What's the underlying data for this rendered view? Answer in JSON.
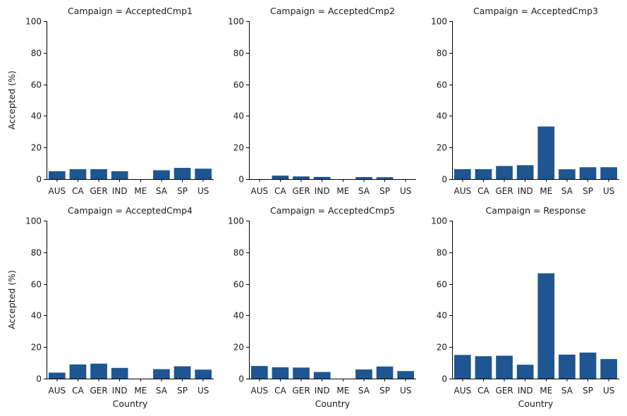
{
  "chart_data": {
    "type": "bar",
    "facet_grid": "2x3",
    "xlabel": "Country",
    "ylabel": "Accepted (%)",
    "ylim": [
      0,
      100
    ],
    "yticks": [
      0,
      20,
      40,
      60,
      80,
      100
    ],
    "categories": [
      "AUS",
      "CA",
      "GER",
      "IND",
      "ME",
      "SA",
      "SP",
      "US"
    ],
    "bar_color": "#1f5591",
    "grid": false,
    "panels": [
      {
        "title": "Campaign = AcceptedCmp1",
        "values": [
          5.0,
          6.3,
          6.3,
          5.0,
          0,
          5.6,
          7.1,
          6.6
        ]
      },
      {
        "title": "Campaign = AcceptedCmp2",
        "values": [
          0,
          2.2,
          1.7,
          1.4,
          0,
          1.3,
          1.2,
          0
        ]
      },
      {
        "title": "Campaign = AcceptedCmp3",
        "values": [
          6.3,
          6.3,
          8.3,
          8.8,
          33.3,
          6.2,
          7.5,
          7.5
        ]
      },
      {
        "title": "Campaign = AcceptedCmp4",
        "values": [
          3.8,
          9.0,
          9.5,
          6.8,
          0,
          6.0,
          7.8,
          5.7
        ]
      },
      {
        "title": "Campaign = AcceptedCmp5",
        "values": [
          8.0,
          7.2,
          7.0,
          4.2,
          0,
          5.8,
          7.7,
          4.8
        ]
      },
      {
        "title": "Campaign = Response",
        "values": [
          15.0,
          14.2,
          14.5,
          8.8,
          66.7,
          15.2,
          16.5,
          12.4
        ]
      }
    ]
  }
}
